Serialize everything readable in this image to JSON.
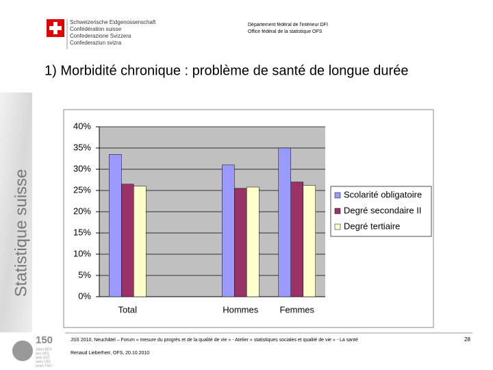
{
  "header": {
    "confederation": [
      "Schweizerische Eidgenossenschaft",
      "Confédération suisse",
      "Confederazione Svizzera",
      "Confederaziun svizra"
    ],
    "department": [
      "Département fédéral de l'intérieur DFI",
      "Office fédéral de la statistique OFS"
    ]
  },
  "title": "1) Morbidité chronique : problème de santé de longue durée",
  "side_label": "Statistique suisse",
  "logo": {
    "number": "150",
    "lines": [
      "Jahre BFS",
      "ans OFS",
      "anni UST",
      "onns UST",
      "years FSO"
    ]
  },
  "chart_data": {
    "type": "bar",
    "categories": [
      "Total",
      null,
      "Hommes",
      "Femmes"
    ],
    "series": [
      {
        "name": "Scolarité obligatoire",
        "color": "#9999ff",
        "values": [
          33.5,
          null,
          31,
          35
        ]
      },
      {
        "name": "Degré secondaire II",
        "color": "#993366",
        "values": [
          26.5,
          null,
          25.5,
          27
        ]
      },
      {
        "name": "Degré tertiaire",
        "color": "#ffffcc",
        "values": [
          26,
          null,
          25.8,
          26.2
        ]
      }
    ],
    "ylim": [
      0,
      40
    ],
    "yticks": [
      {
        "value": 0,
        "label": "0%"
      },
      {
        "value": 5,
        "label": "5%"
      },
      {
        "value": 10,
        "label": "10%"
      },
      {
        "value": 15,
        "label": "15%"
      },
      {
        "value": 20,
        "label": "20%"
      },
      {
        "value": 25,
        "label": "25%"
      },
      {
        "value": 30,
        "label": "30%"
      },
      {
        "value": 35,
        "label": "35%"
      },
      {
        "value": 40,
        "label": "40%"
      }
    ],
    "grid": true,
    "legend": "right",
    "plot_background": "#c0c0c0"
  },
  "footer": {
    "text": "JSS 2010, Neuchâtel – Forum « mesure du progrès et de la qualité de vie » - Atelier « statistiques sociales et qualité de vie » - La santé",
    "author": "Renaud Lieberherr, OFS, 20.10.2010",
    "page": "28"
  }
}
